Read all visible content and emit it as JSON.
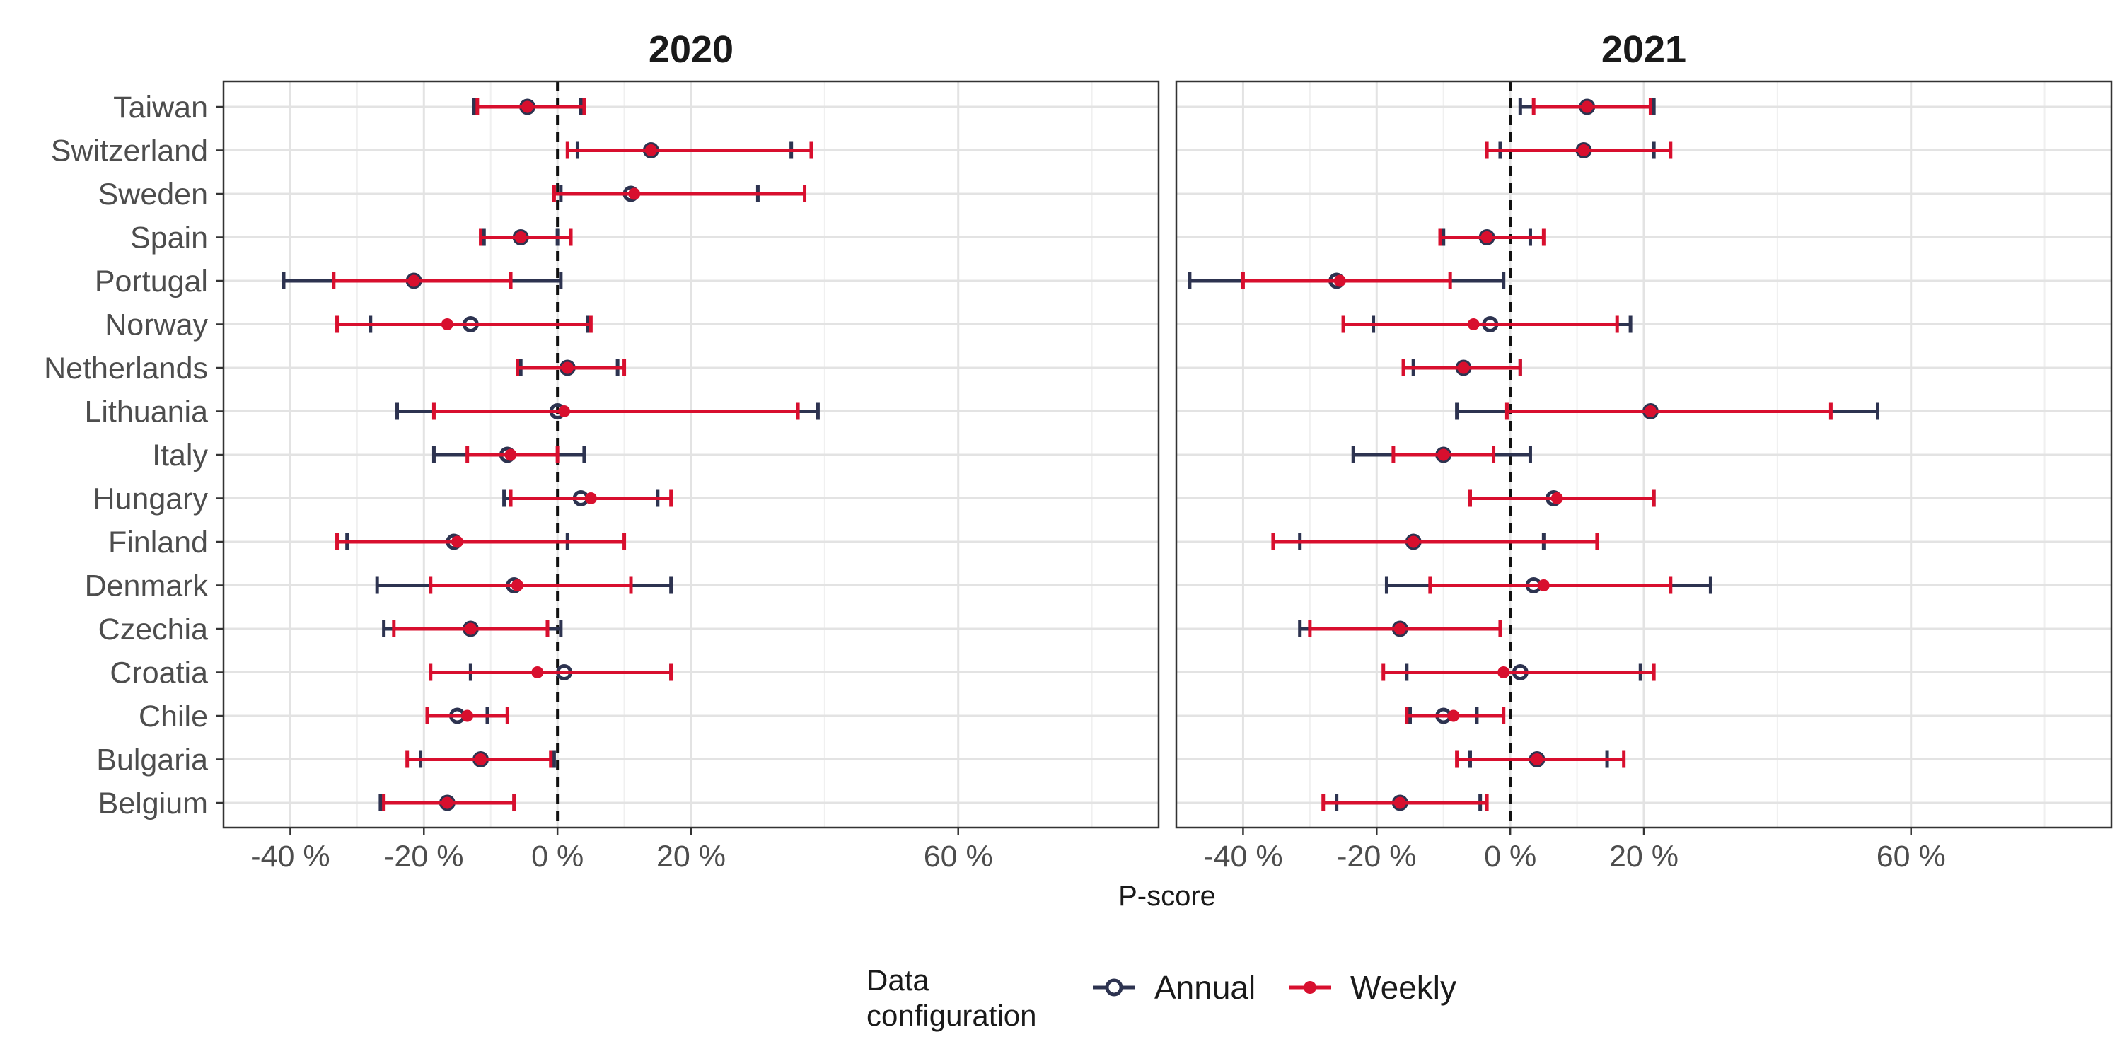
{
  "chart_data": {
    "type": "scatter",
    "subtype": "dot-and-errorbar, faceted",
    "xlabel": "P-score",
    "x_ticks": [
      "-40 %",
      "-20 %",
      "0 %",
      "20 %",
      "60 %"
    ],
    "x_tick_values": [
      -40,
      -20,
      0,
      20,
      60
    ],
    "xlim": [
      -50,
      90
    ],
    "reference_line": {
      "x": 0,
      "style": "dashed"
    },
    "grid": true,
    "legend": {
      "title": "Data configuration",
      "position": "bottom",
      "entries": [
        {
          "name": "Annual",
          "color": "#2d3350",
          "marker": "open-circle"
        },
        {
          "name": "Weekly",
          "color": "#d80f2e",
          "marker": "filled-circle"
        }
      ]
    },
    "categories": [
      "Taiwan",
      "Switzerland",
      "Sweden",
      "Spain",
      "Portugal",
      "Norway",
      "Netherlands",
      "Lithuania",
      "Italy",
      "Hungary",
      "Finland",
      "Denmark",
      "Czechia",
      "Croatia",
      "Chile",
      "Bulgaria",
      "Belgium"
    ],
    "facets": [
      {
        "title": "2020",
        "series": [
          {
            "name": "Annual",
            "points": [
              {
                "category": "Taiwan",
                "value": -4.5,
                "low": -12.5,
                "high": 3.5
              },
              {
                "category": "Switzerland",
                "value": 14,
                "low": 3,
                "high": 35
              },
              {
                "category": "Sweden",
                "value": 11,
                "low": 0.5,
                "high": 30
              },
              {
                "category": "Spain",
                "value": -5.5,
                "low": -11,
                "high": 0
              },
              {
                "category": "Portugal",
                "value": -21.5,
                "low": -41,
                "high": 0.5
              },
              {
                "category": "Norway",
                "value": -13,
                "low": -28,
                "high": 4.5
              },
              {
                "category": "Netherlands",
                "value": 1.5,
                "low": -5.5,
                "high": 9
              },
              {
                "category": "Lithuania",
                "value": 0,
                "low": -24,
                "high": 39
              },
              {
                "category": "Italy",
                "value": -7.5,
                "low": -18.5,
                "high": 4
              },
              {
                "category": "Hungary",
                "value": 3.5,
                "low": -8,
                "high": 15
              },
              {
                "category": "Finland",
                "value": -15.5,
                "low": -31.5,
                "high": 1.5
              },
              {
                "category": "Denmark",
                "value": -6.5,
                "low": -27,
                "high": 17
              },
              {
                "category": "Czechia",
                "value": -13,
                "low": -26,
                "high": 0.5
              },
              {
                "category": "Croatia",
                "value": 1,
                "low": -13,
                "high": 17
              },
              {
                "category": "Chile",
                "value": -15,
                "low": -10.5,
                "high": -10.5
              },
              {
                "category": "Bulgaria",
                "value": -11.5,
                "low": -20.5,
                "high": -0.5
              },
              {
                "category": "Belgium",
                "value": -16.5,
                "low": -26.5,
                "high": -6.5
              }
            ]
          },
          {
            "name": "Weekly",
            "points": [
              {
                "category": "Taiwan",
                "value": -4.5,
                "low": -12,
                "high": 4
              },
              {
                "category": "Switzerland",
                "value": 14,
                "low": 1.5,
                "high": 38
              },
              {
                "category": "Sweden",
                "value": 11.5,
                "low": -0.5,
                "high": 37
              },
              {
                "category": "Spain",
                "value": -5.5,
                "low": -11.5,
                "high": 2
              },
              {
                "category": "Portugal",
                "value": -21.5,
                "low": -33.5,
                "high": -7
              },
              {
                "category": "Norway",
                "value": -16.5,
                "low": -33,
                "high": 5
              },
              {
                "category": "Netherlands",
                "value": 1.5,
                "low": -6,
                "high": 10
              },
              {
                "category": "Lithuania",
                "value": 1,
                "low": -18.5,
                "high": 36
              },
              {
                "category": "Italy",
                "value": -7,
                "low": -13.5,
                "high": 0
              },
              {
                "category": "Hungary",
                "value": 5,
                "low": -7,
                "high": 17
              },
              {
                "category": "Finland",
                "value": -15,
                "low": -33,
                "high": 10
              },
              {
                "category": "Denmark",
                "value": -6,
                "low": -19,
                "high": 11
              },
              {
                "category": "Czechia",
                "value": -13,
                "low": -24.5,
                "high": -1.5
              },
              {
                "category": "Croatia",
                "value": -3,
                "low": -19,
                "high": 17
              },
              {
                "category": "Chile",
                "value": -13.5,
                "low": -19.5,
                "high": -7.5
              },
              {
                "category": "Bulgaria",
                "value": -11.5,
                "low": -22.5,
                "high": -1
              },
              {
                "category": "Belgium",
                "value": -16.5,
                "low": -26,
                "high": -6.5
              }
            ]
          }
        ]
      },
      {
        "title": "2021",
        "series": [
          {
            "name": "Annual",
            "points": [
              {
                "category": "Taiwan",
                "value": 11.5,
                "low": 1.5,
                "high": 21.5
              },
              {
                "category": "Switzerland",
                "value": 11,
                "low": -1.5,
                "high": 21.5
              },
              {
                "category": "Sweden",
                "value": null,
                "low": null,
                "high": null
              },
              {
                "category": "Spain",
                "value": -3.5,
                "low": -10,
                "high": 3
              },
              {
                "category": "Portugal",
                "value": -26,
                "low": -48,
                "high": -1
              },
              {
                "category": "Norway",
                "value": -3,
                "low": -20.5,
                "high": 18
              },
              {
                "category": "Netherlands",
                "value": -7,
                "low": -14.5,
                "high": 1.5
              },
              {
                "category": "Lithuania",
                "value": 21,
                "low": -8,
                "high": 55
              },
              {
                "category": "Italy",
                "value": -10,
                "low": -23.5,
                "high": 3
              },
              {
                "category": "Hungary",
                "value": 6.5,
                "low": -6,
                "high": 21.5
              },
              {
                "category": "Finland",
                "value": -14.5,
                "low": -31.5,
                "high": 5
              },
              {
                "category": "Denmark",
                "value": 3.5,
                "low": -18.5,
                "high": 30
              },
              {
                "category": "Czechia",
                "value": -16.5,
                "low": -31.5,
                "high": -1.5
              },
              {
                "category": "Croatia",
                "value": 1.5,
                "low": -15.5,
                "high": 19.5
              },
              {
                "category": "Chile",
                "value": -10,
                "low": -15,
                "high": -5
              },
              {
                "category": "Bulgaria",
                "value": 4,
                "low": -6,
                "high": 14.5
              },
              {
                "category": "Belgium",
                "value": -16.5,
                "low": -26,
                "high": -4.5
              }
            ]
          },
          {
            "name": "Weekly",
            "points": [
              {
                "category": "Taiwan",
                "value": 11.5,
                "low": 3.5,
                "high": 21
              },
              {
                "category": "Switzerland",
                "value": 11,
                "low": -3.5,
                "high": 24
              },
              {
                "category": "Sweden",
                "value": null,
                "low": null,
                "high": null
              },
              {
                "category": "Spain",
                "value": -3.5,
                "low": -10.5,
                "high": 5
              },
              {
                "category": "Portugal",
                "value": -25.5,
                "low": -40,
                "high": -9
              },
              {
                "category": "Norway",
                "value": -5.5,
                "low": -25,
                "high": 16
              },
              {
                "category": "Netherlands",
                "value": -7,
                "low": -16,
                "high": 1.5
              },
              {
                "category": "Lithuania",
                "value": 21,
                "low": -0.5,
                "high": 48
              },
              {
                "category": "Italy",
                "value": -10,
                "low": -17.5,
                "high": -2.5
              },
              {
                "category": "Hungary",
                "value": 7,
                "low": -6,
                "high": 21.5
              },
              {
                "category": "Finland",
                "value": -14.5,
                "low": -35.5,
                "high": 13
              },
              {
                "category": "Denmark",
                "value": 5,
                "low": -12,
                "high": 24
              },
              {
                "category": "Czechia",
                "value": -16.5,
                "low": -30,
                "high": -1.5
              },
              {
                "category": "Croatia",
                "value": -1,
                "low": -19,
                "high": 21.5
              },
              {
                "category": "Chile",
                "value": -8.5,
                "low": -15.5,
                "high": -1
              },
              {
                "category": "Bulgaria",
                "value": 4,
                "low": -8,
                "high": 17
              },
              {
                "category": "Belgium",
                "value": -16.5,
                "low": -28,
                "high": -3.5
              }
            ]
          }
        ]
      }
    ]
  }
}
